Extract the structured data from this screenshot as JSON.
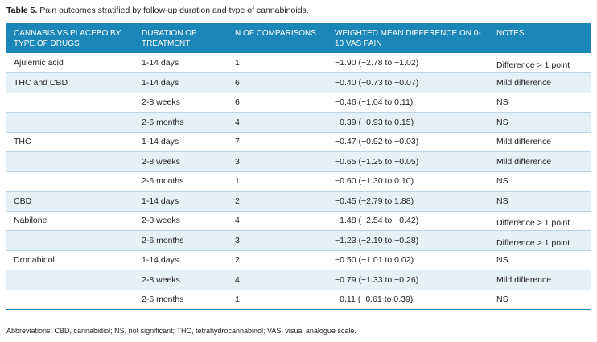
{
  "caption": {
    "label": "Table 5.",
    "text": "Pain outcomes stratified by follow-up duration and type of cannabinoids."
  },
  "table": {
    "headers": [
      "CANNABIS VS PLACEBO BY TYPE OF DRUGS",
      "DURATION OF TREATMENT",
      "N OF COMPARISONS",
      "WEIGHTED MEAN DIFFERENCE ON 0-10 VAS PAIN",
      "NOTES"
    ],
    "rows": [
      [
        "Ajulemic acid",
        "1-14 days",
        "1",
        "−1.90 (−2.78 to −1.02)",
        "Difference > 1 point"
      ],
      [
        "THC and CBD",
        "1-14 days",
        "6",
        "−0.40 (−0.73 to −0.07)",
        "Mild difference"
      ],
      [
        "",
        "2-8 weeks",
        "6",
        "−0.46 (−1.04 to 0.11)",
        "NS"
      ],
      [
        "",
        "2-6 months",
        "4",
        "−0.39 (−0.93 to 0.15)",
        "NS"
      ],
      [
        "THC",
        "1-14 days",
        "7",
        "−0.47 (−0.92 to −0.03)",
        "Mild difference"
      ],
      [
        "",
        "2-8 weeks",
        "3",
        "−0.65 (−1.25 to −0.05)",
        "Mild difference"
      ],
      [
        "",
        "2-6 months",
        "1",
        "−0.60 (−1.30 to 0.10)",
        "NS"
      ],
      [
        "CBD",
        "1-14 days",
        "2",
        "−0.45 (−2.79 to 1.88)",
        "NS"
      ],
      [
        "Nabilone",
        "2-8 weeks",
        "4",
        "−1.48 (−2.54 to −0.42)",
        "Difference > 1 point"
      ],
      [
        "",
        "2-6 months",
        "3",
        "−1.23 (−2.19 to −0.28)",
        "Difference > 1 point"
      ],
      [
        "Dronabinol",
        "1-14 days",
        "2",
        "−0.50 (−1.01 to 0.02)",
        "NS"
      ],
      [
        "",
        "2-8 weeks",
        "4",
        "−0.79 (−1.33 to −0.26)",
        "Mild difference"
      ],
      [
        "",
        "2-6 months",
        "1",
        "−0.11 (−0.61 to 0.39)",
        "NS"
      ]
    ]
  },
  "footnote": "Abbreviations: CBD, cannabidiol; NS, not significant; THC, tetrahydrocannabinol; VAS, visual analogue scale.",
  "colors": {
    "header_bg": "#1a87b8",
    "alt_row_bg": "#e6f0f7",
    "row_rule": "#b9d5e6"
  }
}
